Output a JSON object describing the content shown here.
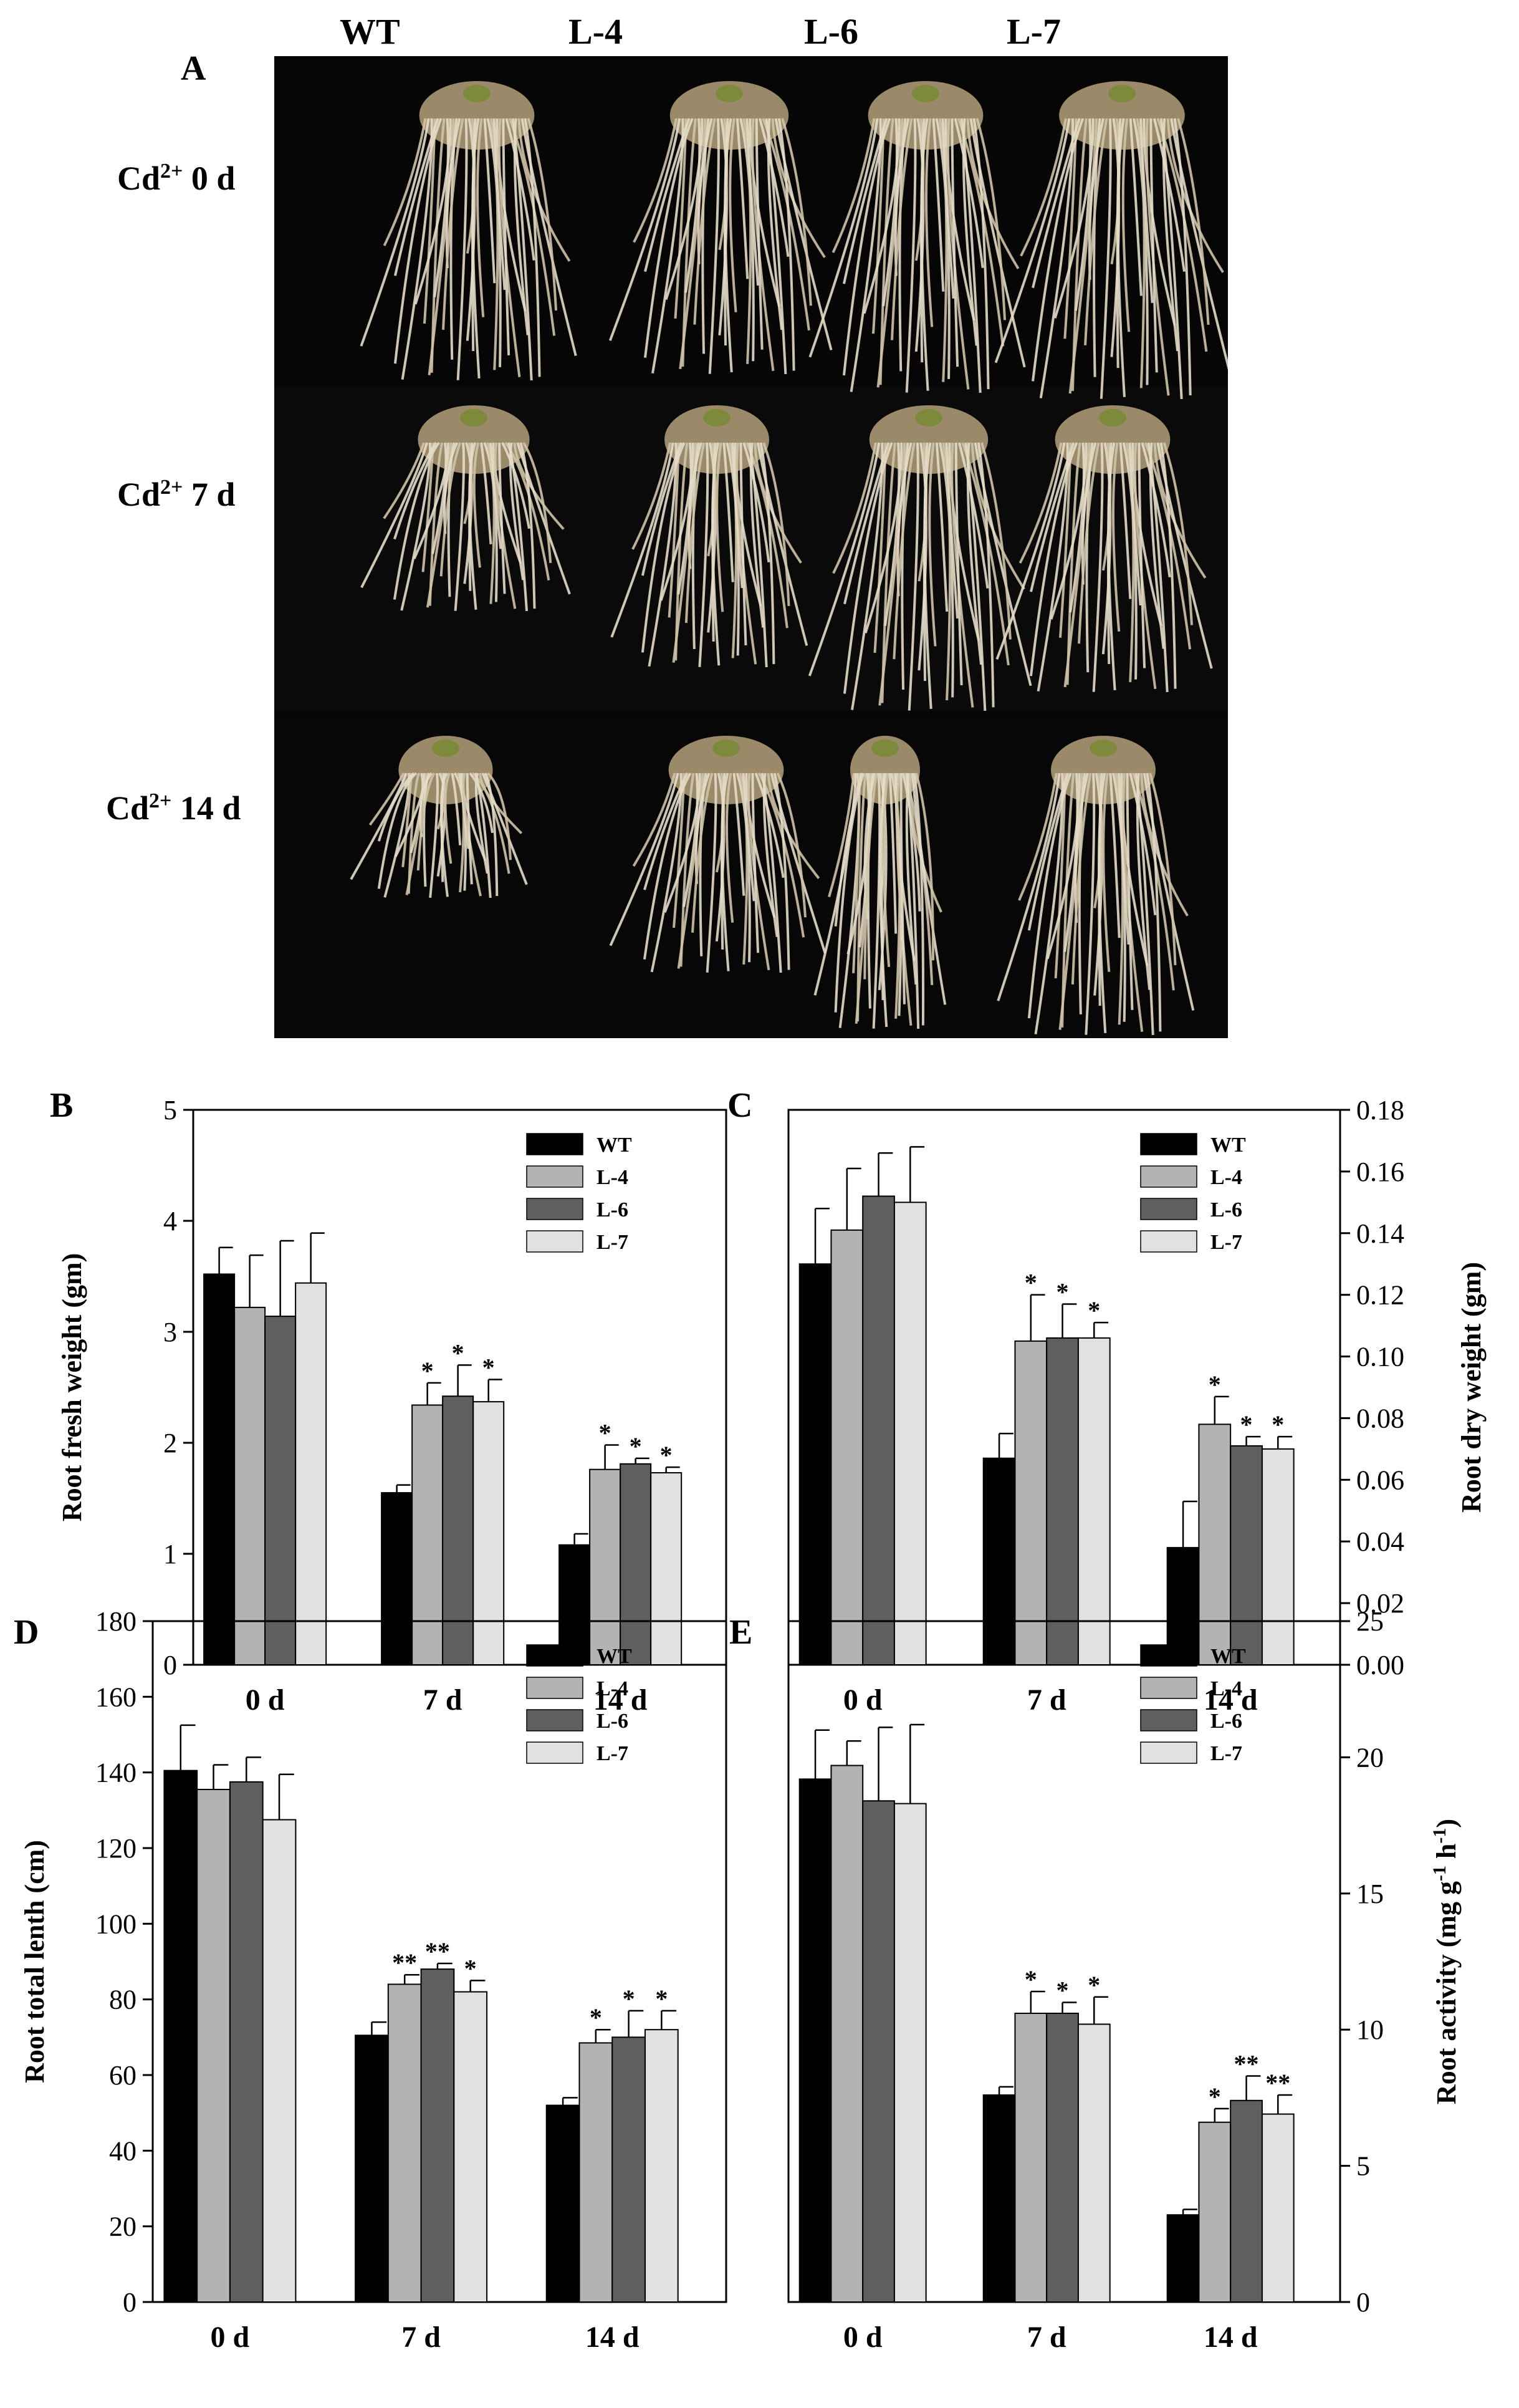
{
  "photo_panel": {
    "letter": "A",
    "columns": [
      "WT",
      "L-4",
      "L-6",
      "L-7"
    ],
    "rows": [
      {
        "base": "Cd",
        "sup": "2+",
        "rest": " 0 d"
      },
      {
        "base": "Cd",
        "sup": "2+",
        "rest": " 7 d"
      },
      {
        "base": "Cd",
        "sup": "2+",
        "rest": " 14 d"
      }
    ]
  },
  "chart_data": [
    {
      "id": "B",
      "letter": "B",
      "type": "bar",
      "categories": [
        "0 d",
        "7 d",
        "14 d"
      ],
      "ylabel": "Root fresh weight (gm)",
      "ylabel_side": "left",
      "ylim": [
        0,
        5
      ],
      "yticks": [
        "0",
        "1",
        "2",
        "3",
        "4",
        "5"
      ],
      "legend": "top-right",
      "series": [
        {
          "name": "WT",
          "color": "#000000",
          "values": [
            3.52,
            1.55,
            1.08
          ],
          "errors": [
            0.24,
            0.07,
            0.1
          ],
          "stars": [
            "",
            "",
            ""
          ]
        },
        {
          "name": "L-4",
          "color": "#b3b3b3",
          "values": [
            3.22,
            2.34,
            1.76
          ],
          "errors": [
            0.47,
            0.2,
            0.22
          ],
          "stars": [
            "",
            "*",
            "*"
          ]
        },
        {
          "name": "L-6",
          "color": "#5f5f5f",
          "values": [
            3.14,
            2.42,
            1.81
          ],
          "errors": [
            0.68,
            0.28,
            0.05
          ],
          "stars": [
            "",
            "*",
            "*"
          ]
        },
        {
          "name": "L-7",
          "color": "#e1e1e1",
          "values": [
            3.44,
            2.37,
            1.73
          ],
          "errors": [
            0.45,
            0.2,
            0.05
          ],
          "stars": [
            "",
            "*",
            "*"
          ]
        }
      ]
    },
    {
      "id": "C",
      "letter": "C",
      "type": "bar",
      "categories": [
        "0 d",
        "7 d",
        "14 d"
      ],
      "ylabel": "Root dry weight  (gm)",
      "ylabel_side": "right",
      "ylim": [
        0,
        0.18
      ],
      "yticks": [
        "0.00",
        "0.02",
        "0.04",
        "0.06",
        "0.08",
        "0.10",
        "0.12",
        "0.14",
        "0.16",
        "0.18"
      ],
      "legend": "top-right",
      "series": [
        {
          "name": "WT",
          "color": "#000000",
          "values": [
            0.13,
            0.067,
            0.038
          ],
          "errors": [
            0.018,
            0.008,
            0.015
          ],
          "stars": [
            "",
            "",
            ""
          ]
        },
        {
          "name": "L-4",
          "color": "#b3b3b3",
          "values": [
            0.141,
            0.105,
            0.078
          ],
          "errors": [
            0.02,
            0.015,
            0.009
          ],
          "stars": [
            "",
            "*",
            "*"
          ]
        },
        {
          "name": "L-6",
          "color": "#5f5f5f",
          "values": [
            0.152,
            0.106,
            0.071
          ],
          "errors": [
            0.014,
            0.011,
            0.003
          ],
          "stars": [
            "",
            "*",
            "*"
          ]
        },
        {
          "name": "L-7",
          "color": "#e1e1e1",
          "values": [
            0.15,
            0.106,
            0.07
          ],
          "errors": [
            0.018,
            0.005,
            0.004
          ],
          "stars": [
            "",
            "*",
            "*"
          ]
        }
      ]
    },
    {
      "id": "D",
      "letter": "D",
      "type": "bar",
      "categories": [
        "0 d",
        "7 d",
        "14 d"
      ],
      "ylabel": "Root total lenth (cm)",
      "ylabel_side": "left",
      "ylim": [
        0,
        180
      ],
      "yticks": [
        "0",
        "20",
        "40",
        "60",
        "80",
        "100",
        "120",
        "140",
        "160",
        "180"
      ],
      "legend": "top-right",
      "series": [
        {
          "name": "WT",
          "color": "#000000",
          "values": [
            140.5,
            70.5,
            52
          ],
          "errors": [
            12,
            3.5,
            2
          ],
          "stars": [
            "",
            "",
            ""
          ]
        },
        {
          "name": "L-4",
          "color": "#b3b3b3",
          "values": [
            135.5,
            84,
            68.5
          ],
          "errors": [
            6.5,
            2.5,
            3.5
          ],
          "stars": [
            "",
            "**",
            "*"
          ]
        },
        {
          "name": "L-6",
          "color": "#5f5f5f",
          "values": [
            137.5,
            88,
            70
          ],
          "errors": [
            6.5,
            1.5,
            7
          ],
          "stars": [
            "",
            "**",
            "*"
          ]
        },
        {
          "name": "L-7",
          "color": "#e1e1e1",
          "values": [
            127.5,
            82,
            72
          ],
          "errors": [
            12,
            3,
            5
          ],
          "stars": [
            "",
            "*",
            "*"
          ]
        }
      ]
    },
    {
      "id": "E",
      "letter": "E",
      "type": "bar",
      "categories": [
        "0 d",
        "7 d",
        "14 d"
      ],
      "ylabel_parts": {
        "pre": "Root activity (mg g",
        "sup1": "-1",
        "mid": " h",
        "sup2": "-1",
        "post": ")"
      },
      "ylabel_side": "right",
      "ylim": [
        0,
        25
      ],
      "yticks": [
        "0",
        "5",
        "10",
        "15",
        "20",
        "25"
      ],
      "legend": "top-right",
      "series": [
        {
          "name": "WT",
          "color": "#000000",
          "values": [
            19.2,
            7.6,
            3.2
          ],
          "errors": [
            1.8,
            0.3,
            0.2
          ],
          "stars": [
            "",
            "",
            ""
          ]
        },
        {
          "name": "L-4",
          "color": "#b3b3b3",
          "values": [
            19.7,
            10.6,
            6.6
          ],
          "errors": [
            0.9,
            0.8,
            0.5
          ],
          "stars": [
            "",
            "*",
            "*"
          ]
        },
        {
          "name": "L-6",
          "color": "#5f5f5f",
          "values": [
            18.4,
            10.6,
            7.4
          ],
          "errors": [
            2.7,
            0.4,
            0.9
          ],
          "stars": [
            "",
            "*",
            "**"
          ]
        },
        {
          "name": "L-7",
          "color": "#e1e1e1",
          "values": [
            18.3,
            10.2,
            6.9
          ],
          "errors": [
            2.9,
            1,
            0.7
          ],
          "stars": [
            "",
            "*",
            "**"
          ]
        }
      ]
    }
  ]
}
